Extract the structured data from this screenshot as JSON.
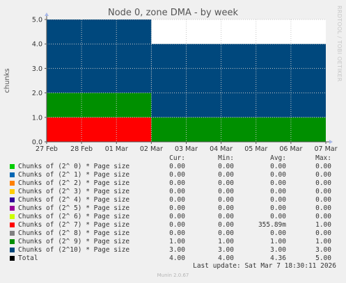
{
  "title": "Node 0, zone DMA - by week",
  "side_text": "RRDTOOL / TOBI OETIKER",
  "legend_headers": {
    "cur": "Cur:",
    "min": "Min:",
    "avg": "Avg:",
    "max": "Max:"
  },
  "legend": [
    {
      "label": "Chunks of (2^ 0) * Page size",
      "color": "#00cc00",
      "cur": "0.00",
      "min": "0.00",
      "avg": "0.00",
      "max": "0.00"
    },
    {
      "label": "Chunks of (2^ 1) * Page size",
      "color": "#0066b3",
      "cur": "0.00",
      "min": "0.00",
      "avg": "0.00",
      "max": "0.00"
    },
    {
      "label": "Chunks of (2^ 2) * Page size",
      "color": "#ff8000",
      "cur": "0.00",
      "min": "0.00",
      "avg": "0.00",
      "max": "0.00"
    },
    {
      "label": "Chunks of (2^ 3) * Page size",
      "color": "#ffcc00",
      "cur": "0.00",
      "min": "0.00",
      "avg": "0.00",
      "max": "0.00"
    },
    {
      "label": "Chunks of (2^ 4) * Page size",
      "color": "#330099",
      "cur": "0.00",
      "min": "0.00",
      "avg": "0.00",
      "max": "0.00"
    },
    {
      "label": "Chunks of (2^ 5) * Page size",
      "color": "#990099",
      "cur": "0.00",
      "min": "0.00",
      "avg": "0.00",
      "max": "0.00"
    },
    {
      "label": "Chunks of (2^ 6) * Page size",
      "color": "#ccff00",
      "cur": "0.00",
      "min": "0.00",
      "avg": "0.00",
      "max": "0.00"
    },
    {
      "label": "Chunks of (2^ 7) * Page size",
      "color": "#ff0000",
      "cur": "0.00",
      "min": "0.00",
      "avg": "355.89m",
      "max": "1.00"
    },
    {
      "label": "Chunks of (2^ 8) * Page size",
      "color": "#808080",
      "cur": "0.00",
      "min": "0.00",
      "avg": "0.00",
      "max": "0.00"
    },
    {
      "label": "Chunks of (2^ 9) * Page size",
      "color": "#008f00",
      "cur": "1.00",
      "min": "1.00",
      "avg": "1.00",
      "max": "1.00"
    },
    {
      "label": "Chunks of (2^10) * Page size",
      "color": "#00487d",
      "cur": "3.00",
      "min": "3.00",
      "avg": "3.00",
      "max": "3.00"
    },
    {
      "label": "Total",
      "color": "#000000",
      "cur": "4.00",
      "min": "4.00",
      "avg": "4.36",
      "max": "5.00"
    }
  ],
  "last_update": "Last update: Sat Mar  7 18:30:11 2026",
  "version": "Munin 2.0.67",
  "chart_data": {
    "type": "area",
    "title": "Node 0, zone DMA - by week",
    "ylabel": "chunks",
    "xlabel": "",
    "ylim": [
      0,
      5
    ],
    "yticks": [
      "0.0",
      "1.0",
      "2.0",
      "3.0",
      "4.0",
      "5.0"
    ],
    "xticks": [
      "27 Feb",
      "28 Feb",
      "01 Mar",
      "02 Mar",
      "03 Mar",
      "04 Mar",
      "05 Mar",
      "06 Mar",
      "07 Mar"
    ],
    "stacked": true,
    "x_range": [
      "27 Feb",
      "07 Mar"
    ],
    "segments": [
      {
        "x_start": "27 Feb",
        "x_end": "02 Mar",
        "values": {
          "Chunks of (2^ 7) * Page size": 1,
          "Chunks of (2^ 9) * Page size": 1,
          "Chunks of (2^10) * Page size": 3
        }
      },
      {
        "x_start": "02 Mar",
        "x_end": "07 Mar",
        "values": {
          "Chunks of (2^ 7) * Page size": 0,
          "Chunks of (2^ 9) * Page size": 1,
          "Chunks of (2^10) * Page size": 3
        }
      }
    ],
    "series": [
      {
        "name": "Chunks of (2^ 7) * Page size",
        "color": "#ff0000"
      },
      {
        "name": "Chunks of (2^ 9) * Page size",
        "color": "#008f00"
      },
      {
        "name": "Chunks of (2^10) * Page size",
        "color": "#00487d"
      }
    ],
    "grid": true,
    "legend_position": "bottom"
  }
}
